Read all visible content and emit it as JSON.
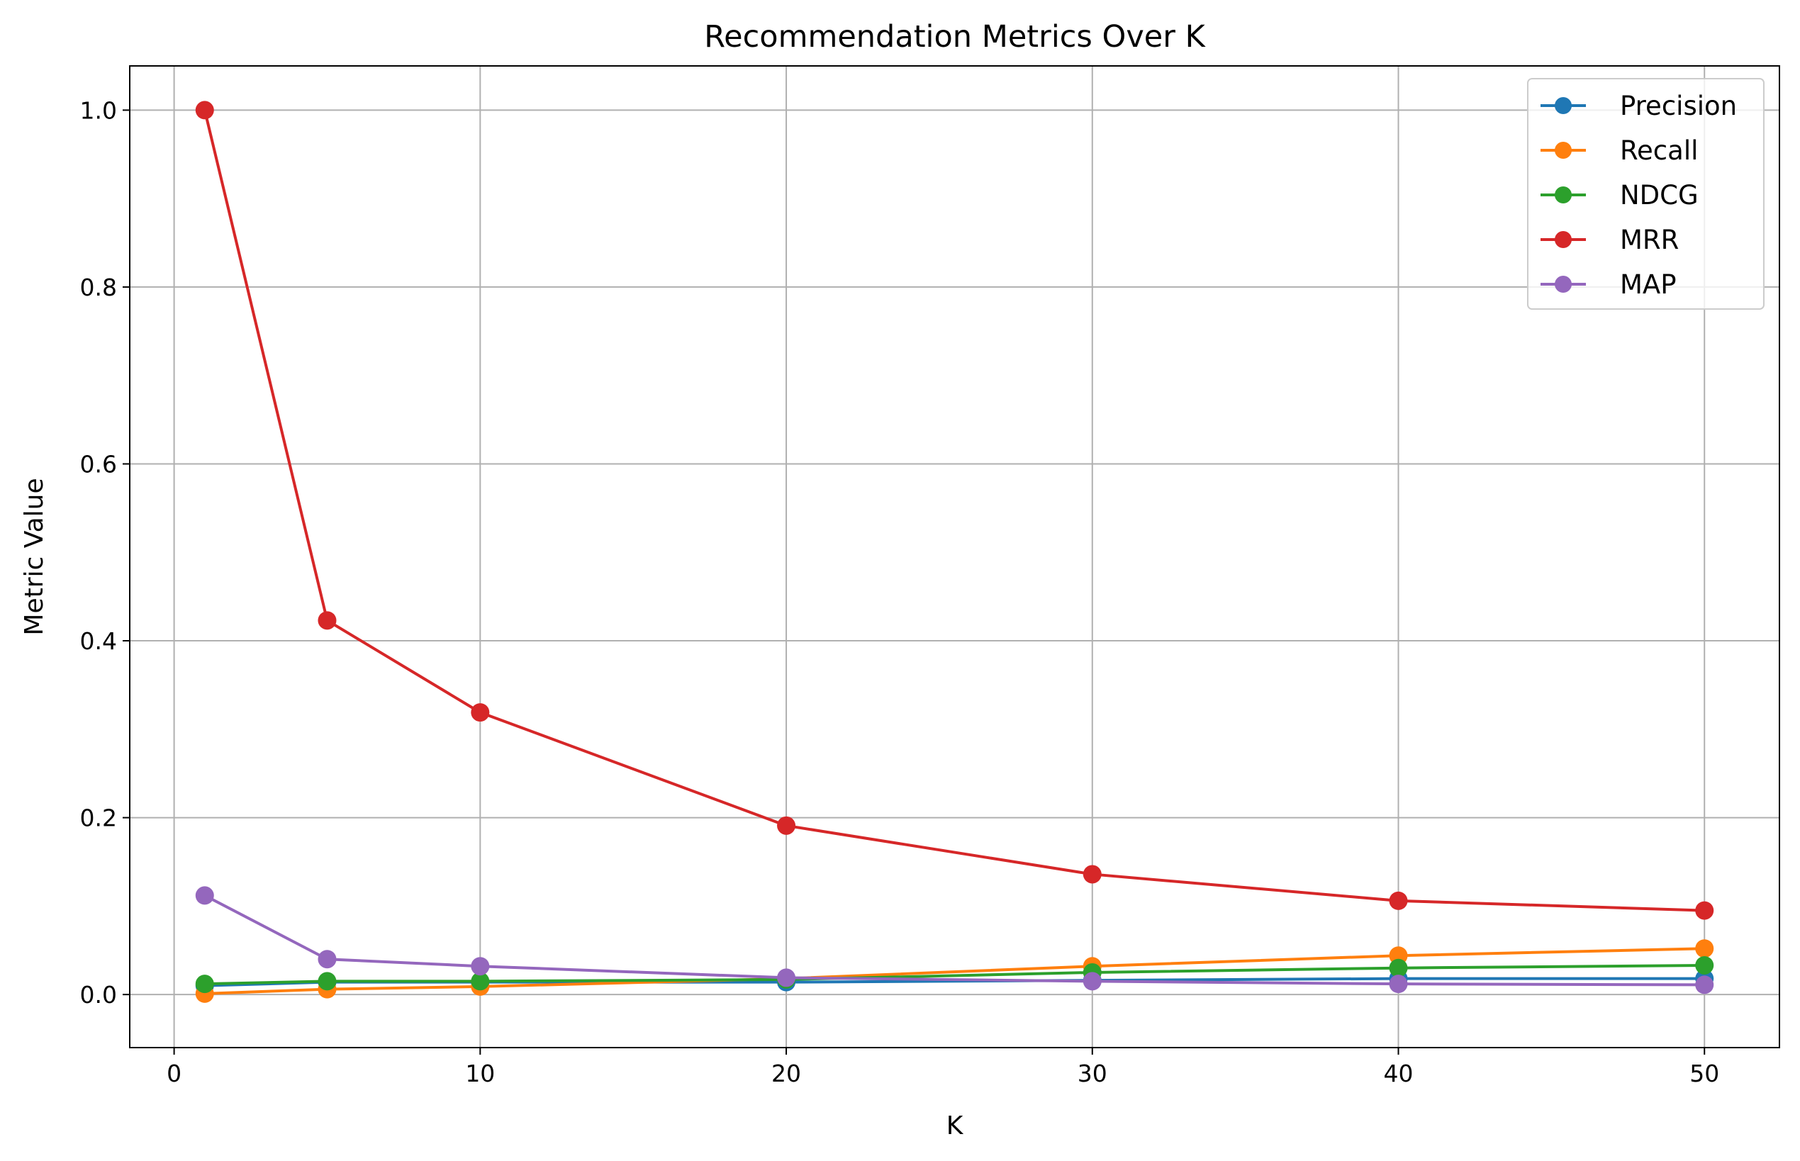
{
  "chart_data": {
    "type": "line",
    "title": "Recommendation Metrics Over K",
    "xlabel": "K",
    "ylabel": "Metric Value",
    "x": [
      1,
      5,
      10,
      20,
      30,
      40,
      50
    ],
    "xlim": [
      -1.45,
      52.45
    ],
    "ylim": [
      -0.06,
      1.05
    ],
    "xticks": [
      0,
      10,
      20,
      30,
      40,
      50
    ],
    "yticks": [
      0.0,
      0.2,
      0.4,
      0.6,
      0.8,
      1.0
    ],
    "xtick_labels": [
      "0",
      "10",
      "20",
      "30",
      "40",
      "50"
    ],
    "ytick_labels": [
      "0.0",
      "0.2",
      "0.4",
      "0.6",
      "0.8",
      "1.0"
    ],
    "grid": true,
    "legend_position": "top-right",
    "series": [
      {
        "name": "Precision",
        "color": "#1f77b4",
        "values": [
          0.01,
          0.014,
          0.014,
          0.014,
          0.016,
          0.018,
          0.018
        ]
      },
      {
        "name": "Recall",
        "color": "#ff7f0e",
        "values": [
          0.001,
          0.006,
          0.009,
          0.018,
          0.032,
          0.044,
          0.052
        ]
      },
      {
        "name": "NDCG",
        "color": "#2ca02c",
        "values": [
          0.012,
          0.015,
          0.015,
          0.017,
          0.025,
          0.03,
          0.033
        ]
      },
      {
        "name": "MRR",
        "color": "#d62728",
        "values": [
          1.0,
          0.423,
          0.319,
          0.191,
          0.136,
          0.106,
          0.095
        ]
      },
      {
        "name": "MAP",
        "color": "#9467bd",
        "values": [
          0.112,
          0.04,
          0.032,
          0.019,
          0.015,
          0.012,
          0.011
        ]
      }
    ]
  }
}
